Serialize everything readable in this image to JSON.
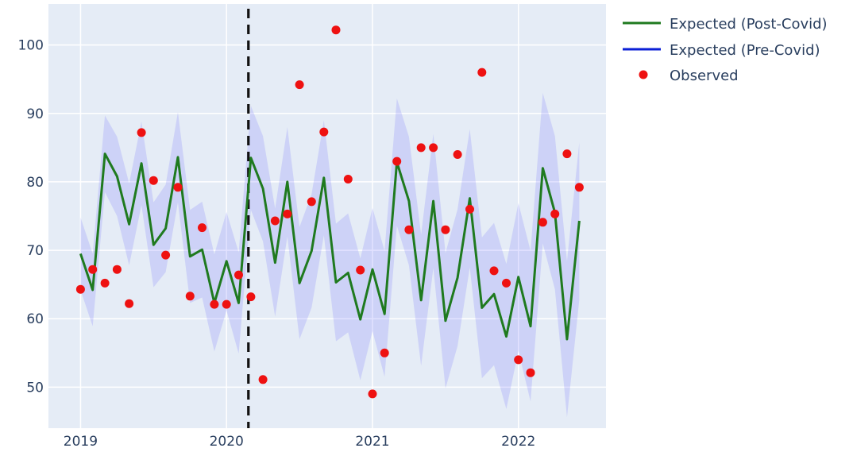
{
  "chart_data": {
    "type": "line",
    "title": "",
    "xlabel": "",
    "ylabel": "",
    "xlim": [
      2018.78,
      2022.6
    ],
    "ylim": [
      44.0,
      106.0
    ],
    "grid": true,
    "legend_position": "top-right",
    "x_ticks": [
      {
        "value": 2019,
        "label": "2019"
      },
      {
        "value": 2020,
        "label": "2020"
      },
      {
        "value": 2021,
        "label": "2021"
      },
      {
        "value": 2022,
        "label": "2022"
      }
    ],
    "y_ticks": [
      {
        "value": 50,
        "label": "50"
      },
      {
        "value": 60,
        "label": "60"
      },
      {
        "value": 70,
        "label": "70"
      },
      {
        "value": 80,
        "label": "80"
      },
      {
        "value": 90,
        "label": "90"
      },
      {
        "value": 100,
        "label": "100"
      }
    ],
    "covid_marker_x": 2020.15,
    "series": [
      {
        "name": "Expected (Post-Covid)",
        "kind": "line",
        "color": "#1f7a1f",
        "band_color": "rgba(110,110,255,0.2)",
        "x": [
          2019.0,
          2019.083,
          2019.167,
          2019.25,
          2019.333,
          2019.417,
          2019.5,
          2019.583,
          2019.667,
          2019.75,
          2019.833,
          2019.917,
          2020.0,
          2020.083,
          2020.167,
          2020.25,
          2020.333,
          2020.417,
          2020.5,
          2020.583,
          2020.667,
          2020.75,
          2020.833,
          2020.917,
          2021.0,
          2021.083,
          2021.167,
          2021.25,
          2021.333,
          2021.417,
          2021.5,
          2021.583,
          2021.667,
          2021.75,
          2021.833,
          2021.917,
          2022.0,
          2022.083,
          2022.167,
          2022.25,
          2022.333,
          2022.417
        ],
        "y": [
          69.5,
          64.2,
          84.1,
          80.8,
          73.8,
          82.7,
          70.8,
          73.2,
          83.6,
          69.1,
          70.1,
          62.3,
          68.4,
          62.3,
          83.5,
          79.0,
          68.2,
          80.0,
          65.2,
          69.9,
          80.6,
          65.3,
          66.7,
          59.9,
          67.2,
          60.7,
          82.9,
          77.2,
          62.7,
          77.2,
          59.7,
          66.0,
          77.6,
          61.6,
          63.6,
          57.4,
          66.1,
          58.9,
          82.0,
          75.5,
          57.0,
          74.3
        ],
        "upper": [
          74.8,
          69.5,
          89.7,
          86.6,
          79.8,
          88.8,
          77.0,
          79.6,
          90.2,
          75.9,
          77.1,
          69.4,
          75.6,
          69.7,
          91.1,
          86.7,
          76.1,
          88.0,
          73.4,
          78.2,
          89.0,
          73.9,
          75.4,
          68.8,
          76.2,
          69.9,
          92.2,
          86.6,
          72.3,
          87.0,
          69.6,
          76.0,
          87.7,
          71.9,
          74.0,
          68.0,
          76.9,
          69.9,
          93.0,
          86.7,
          68.4,
          85.8
        ],
        "lower": [
          64.2,
          58.9,
          78.5,
          75.0,
          67.8,
          76.6,
          64.6,
          66.8,
          77.0,
          62.3,
          63.1,
          55.2,
          61.2,
          54.9,
          75.9,
          71.3,
          60.3,
          72.0,
          57.0,
          61.6,
          72.2,
          56.7,
          58.0,
          51.0,
          58.2,
          51.5,
          73.6,
          67.8,
          53.1,
          67.4,
          49.8,
          56.0,
          67.5,
          51.3,
          53.2,
          46.8,
          55.3,
          47.9,
          71.0,
          64.3,
          45.6,
          62.8
        ]
      },
      {
        "name": "Expected (Pre-Covid)",
        "kind": "line",
        "color": "#0b1fd6",
        "x": [],
        "y": []
      },
      {
        "name": "Observed",
        "kind": "scatter",
        "color": "#ee1111",
        "x": [
          2019.0,
          2019.083,
          2019.167,
          2019.25,
          2019.333,
          2019.417,
          2019.5,
          2019.583,
          2019.667,
          2019.75,
          2019.833,
          2019.917,
          2020.0,
          2020.083,
          2020.167,
          2020.25,
          2020.333,
          2020.417,
          2020.5,
          2020.583,
          2020.667,
          2020.75,
          2020.833,
          2020.917,
          2021.0,
          2021.083,
          2021.167,
          2021.25,
          2021.333,
          2021.417,
          2021.5,
          2021.583,
          2021.667,
          2021.75,
          2021.833,
          2021.917,
          2022.0,
          2022.083,
          2022.167,
          2022.25,
          2022.333,
          2022.417
        ],
        "y": [
          64.3,
          67.2,
          65.2,
          67.2,
          62.2,
          87.2,
          80.2,
          69.3,
          79.2,
          63.3,
          73.3,
          62.1,
          62.1,
          66.4,
          63.2,
          51.1,
          74.3,
          75.3,
          94.2,
          77.1,
          87.3,
          102.2,
          80.4,
          67.1,
          49.0,
          55.0,
          83.0,
          73.0,
          85.0,
          85.0,
          73.0,
          84.0,
          76.0,
          96.0,
          67.0,
          65.2,
          54.0,
          52.1,
          74.1,
          75.3,
          84.1,
          79.2
        ]
      }
    ]
  }
}
